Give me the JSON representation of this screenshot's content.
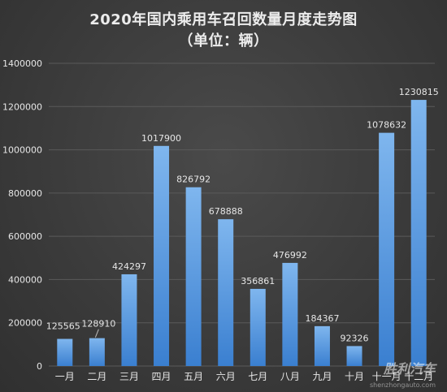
{
  "chart_data": {
    "type": "bar",
    "title": "2020年国内乘用车召回数量月度走势图",
    "subtitle": "（单位：辆）",
    "categories": [
      "一月",
      "二月",
      "三月",
      "四月",
      "五月",
      "六月",
      "七月",
      "八月",
      "九月",
      "十月",
      "十一月",
      "十二月"
    ],
    "values": [
      125565,
      128910,
      424297,
      1017900,
      826792,
      678888,
      356861,
      476992,
      184367,
      92326,
      1078632,
      1230815
    ],
    "data_labels": [
      "125565",
      "128910",
      "424297",
      "1017900",
      "826792",
      "678888",
      "356861",
      "476992",
      "184367",
      "92326",
      "1078632",
      "1230815"
    ],
    "y_ticks": [
      "0",
      "200000",
      "400000",
      "600000",
      "800000",
      "1000000",
      "1200000",
      "1400000"
    ],
    "ylim": [
      0,
      1400000
    ],
    "grid": true,
    "legend": "none",
    "colors": {
      "bar_top": "#7fb6ee",
      "bar_bottom": "#3a7fd0",
      "grid": "#5a5a5a",
      "text": "#e6e6e6"
    }
  },
  "watermark": {
    "text": "胜利汽车",
    "url": "shenzhongauto.com"
  }
}
